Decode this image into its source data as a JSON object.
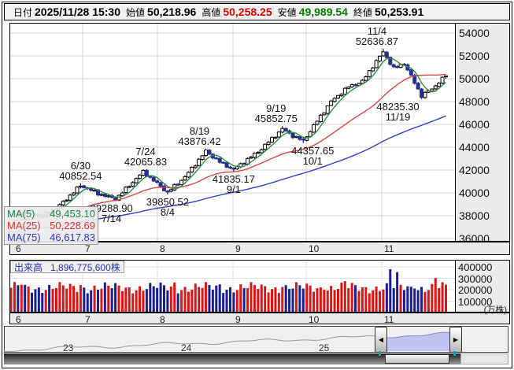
{
  "header": {
    "date_label": "日付",
    "date_value": "2025/11/28 15:30",
    "open_label": "始値",
    "open_value": "50,218.96",
    "high_label": "高値",
    "high_value": "50,258.25",
    "low_label": "安値",
    "low_value": "49,989.54",
    "close_label": "終値",
    "close_value": "50,253.91"
  },
  "main_chart": {
    "y_ticks": [
      "54000",
      "52000",
      "50000",
      "48000",
      "46000",
      "44000",
      "42000",
      "40000",
      "38000",
      "36000"
    ],
    "x_ticks": [
      "6",
      "7",
      "8",
      "9",
      "10",
      "11"
    ],
    "ma_legend": [
      {
        "label": "MA(5)",
        "value": "49,453.10",
        "color": "#1e8449"
      },
      {
        "label": "MA(25)",
        "value": "50,228.69",
        "color": "#e03030"
      },
      {
        "label": "MA(75)",
        "value": "46,617.83",
        "color": "#3333cc"
      }
    ]
  },
  "volume_chart": {
    "label": "出来高",
    "value": "1,896,775,600株",
    "y_ticks": [
      "400000",
      "300000",
      "200000",
      "100000"
    ],
    "unit": "(万株)",
    "x_ticks": [
      "6",
      "7",
      "8",
      "9",
      "10",
      "11"
    ]
  },
  "navigator": {
    "year_labels": [
      "23",
      "24",
      "25"
    ]
  },
  "colors": {
    "candle_up_fill": "#ffffff",
    "candle_up_stroke": "#000000",
    "candle_down": "#243097",
    "volume_up": "#dd1515",
    "volume_down": "#1a1f8f",
    "ma5": "#2d9040",
    "ma25": "#e04545",
    "ma75": "#3040cc",
    "grid": "#d6d6d6",
    "grid_vol": "#e2e2e2",
    "nav_line": "#9a9a9a",
    "nav_fill": "#b6bdee",
    "nav_line_sel": "#8a93d5"
  },
  "chart_data": {
    "type": "candlestick_with_volume",
    "x_axis": {
      "months": [
        "6",
        "7",
        "8",
        "9",
        "10",
        "11"
      ],
      "year": 2025
    },
    "y_axis": {
      "min": 36000,
      "max": 54000,
      "step": 2000
    },
    "volume_axis": {
      "min": 0,
      "max": 400000,
      "step": 100000,
      "unit": "万株"
    },
    "latest_quote": {
      "datetime": "2025/11/28 15:30",
      "open": 50218.96,
      "high": 50258.25,
      "low": 49989.54,
      "close": 50253.91
    },
    "total_volume_shares": "1,896,775,600株",
    "moving_averages": [
      {
        "period": 5,
        "last_value": 49453.1
      },
      {
        "period": 25,
        "last_value": 50228.69
      },
      {
        "period": 75,
        "last_value": 46617.83
      }
    ],
    "annotated_swings": [
      {
        "day": 20,
        "date": "6/30",
        "price": 40852.54,
        "kind": "high",
        "dx": 0,
        "text": [
          "6/30",
          "40852.54"
        ]
      },
      {
        "day": 30,
        "date": "7/14",
        "price": 39288.9,
        "kind": "low",
        "dx": -5,
        "text": [
          "39288.90",
          "7/14"
        ]
      },
      {
        "day": 38,
        "date": "7/24",
        "price": 42065.83,
        "kind": "high",
        "dx": 3,
        "text": [
          "7/24",
          "42065.83"
        ]
      },
      {
        "day": 45,
        "date": "8/4",
        "price": 39850.52,
        "kind": "low",
        "dx": 0,
        "text": [
          "39850.52",
          "8/4"
        ]
      },
      {
        "day": 56,
        "date": "8/19",
        "price": 43876.42,
        "kind": "high",
        "dx": -8,
        "text": [
          "8/19",
          "43876.42"
        ]
      },
      {
        "day": 64,
        "date": "9/1",
        "price": 41835.17,
        "kind": "low",
        "dx": 0,
        "text": [
          "41835.17",
          "9/1"
        ]
      },
      {
        "day": 78,
        "date": "9/19",
        "price": 45852.75,
        "kind": "high",
        "dx": -8,
        "text": [
          "9/19",
          "45852.75"
        ]
      },
      {
        "day": 84,
        "date": "10/1",
        "price": 44357.65,
        "kind": "low",
        "dx": 12,
        "text": [
          "44357.65",
          "10/1"
        ]
      },
      {
        "day": 107,
        "date": "11/4",
        "price": 52636.87,
        "kind": "high",
        "dx": -8,
        "text": [
          "11/4",
          "52636.87"
        ]
      },
      {
        "day": 118,
        "date": "11/19",
        "price": 48235.3,
        "kind": "low",
        "dx": -30,
        "text": [
          "48235.30",
          "11/19"
        ]
      }
    ],
    "trading_days": 126,
    "close_path_anchors": [
      [
        0,
        38050
      ],
      [
        4,
        38300
      ],
      [
        9,
        37950
      ],
      [
        14,
        38900
      ],
      [
        20,
        40650
      ],
      [
        25,
        39950
      ],
      [
        30,
        39450
      ],
      [
        38,
        41850
      ],
      [
        45,
        40050
      ],
      [
        50,
        41400
      ],
      [
        56,
        43650
      ],
      [
        60,
        42700
      ],
      [
        64,
        42050
      ],
      [
        71,
        43600
      ],
      [
        78,
        45600
      ],
      [
        81,
        45000
      ],
      [
        84,
        44550
      ],
      [
        88,
        46300
      ],
      [
        92,
        48000
      ],
      [
        97,
        49300
      ],
      [
        101,
        49750
      ],
      [
        104,
        51100
      ],
      [
        107,
        52350
      ],
      [
        110,
        50900
      ],
      [
        113,
        51350
      ],
      [
        118,
        48500
      ],
      [
        121,
        49100
      ],
      [
        123,
        49700
      ],
      [
        125,
        50253.91
      ]
    ],
    "forced_highs": {
      "20": 40852.54,
      "38": 42065.83,
      "56": 43876.42,
      "78": 45852.75,
      "107": 52636.87
    },
    "forced_lows": {
      "30": 39288.9,
      "45": 39850.52,
      "64": 41835.17,
      "84": 44357.65,
      "118": 48235.3
    }
  }
}
